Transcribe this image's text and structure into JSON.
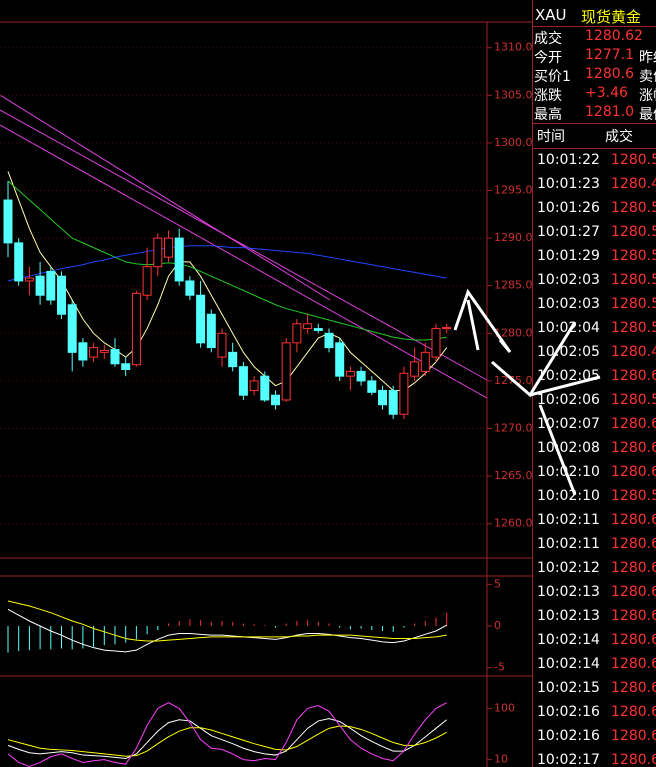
{
  "chart_data": [
    {
      "type": "candlestick",
      "ylim": [
        1256.4,
        1312.7
      ],
      "yticks": [
        {
          "value": 1310,
          "label": "1310.0"
        },
        {
          "value": 1305,
          "label": "1305.0"
        },
        {
          "value": 1300,
          "label": "1300.0"
        },
        {
          "value": 1295,
          "label": "1295.0"
        },
        {
          "value": 1290,
          "label": "1290.0"
        },
        {
          "value": 1285,
          "label": "1285.0"
        },
        {
          "value": 1280,
          "label": "1280.0"
        },
        {
          "value": 1275,
          "label": "1275.0"
        },
        {
          "value": 1270,
          "label": "1270.0"
        },
        {
          "value": 1265,
          "label": "1265.0"
        },
        {
          "value": 1260,
          "label": "1260.0"
        }
      ],
      "open": [
        1294,
        1289.5,
        1285.5,
        1286,
        1286.5,
        1286,
        1283,
        1279,
        1277.5,
        1278,
        1278.3,
        1276.8,
        1276.7,
        1284,
        1287,
        1288,
        1290,
        1285.5,
        1284,
        1282,
        1277.5,
        1278,
        1276.5,
        1274,
        1275.5,
        1273.5,
        1273,
        1279,
        1280.5,
        1280.5,
        1280,
        1279,
        1275.5,
        1276,
        1275,
        1274,
        1274,
        1271.5,
        1275.5,
        1276,
        1277.5,
        1280.5
      ],
      "high": [
        1296,
        1290,
        1287,
        1287.5,
        1287,
        1286.5,
        1283.5,
        1279.5,
        1279,
        1278.8,
        1279.5,
        1277.5,
        1284.5,
        1289,
        1290.5,
        1290.8,
        1291,
        1286,
        1285.5,
        1282.5,
        1280.5,
        1279,
        1277,
        1275.5,
        1276,
        1274,
        1279.5,
        1281.5,
        1282,
        1281,
        1280.5,
        1279.5,
        1276.5,
        1276.5,
        1275.5,
        1274.5,
        1274.5,
        1276.5,
        1278.5,
        1279,
        1281,
        1281
      ],
      "low": [
        1288,
        1285,
        1284,
        1283,
        1283,
        1281.5,
        1276,
        1276.5,
        1277,
        1277.3,
        1276.5,
        1275.5,
        1276.5,
        1283.5,
        1286,
        1287.5,
        1285,
        1283.5,
        1278.5,
        1278,
        1276.5,
        1276,
        1273,
        1273.5,
        1272.8,
        1272,
        1272.8,
        1278,
        1280,
        1280,
        1278,
        1275,
        1274,
        1274.5,
        1273.5,
        1272,
        1271,
        1271,
        1275,
        1275.5,
        1277,
        1280
      ],
      "close": [
        1289.5,
        1285.5,
        1285.8,
        1284,
        1283.5,
        1282,
        1278,
        1277.2,
        1278.5,
        1278.2,
        1276.8,
        1276.2,
        1284.2,
        1287,
        1290,
        1290,
        1285.5,
        1284,
        1279,
        1278.5,
        1280,
        1276.5,
        1273.5,
        1275,
        1273,
        1272.5,
        1279,
        1281,
        1281,
        1280.3,
        1278.5,
        1275.5,
        1276,
        1275,
        1273.8,
        1272.5,
        1271.5,
        1275.8,
        1277,
        1278,
        1280.5,
        1280.62
      ],
      "up_color": "#ff3232",
      "down_color": "#54ffff",
      "series": [
        {
          "color": "#ffffaa",
          "values": [
            1297,
            1294,
            1291,
            1288.5,
            1287,
            1285.5,
            1283.5,
            1281.5,
            1280,
            1279,
            1278.3,
            1277.5,
            1278.5,
            1280.5,
            1283,
            1286,
            1287.5,
            1287.5,
            1286,
            1284,
            1282,
            1280,
            1278,
            1276.5,
            1275.5,
            1274.5,
            1275,
            1276.5,
            1278,
            1279.5,
            1280,
            1279.5,
            1278,
            1277,
            1276,
            1275,
            1274,
            1274,
            1274.8,
            1275.8,
            1277,
            1278.5
          ]
        },
        {
          "color": "#22cc22",
          "values": [
            1296,
            1295,
            1294,
            1293,
            1292,
            1291,
            1290,
            1289.5,
            1289,
            1288.5,
            1288,
            1287.5,
            1287.3,
            1287.2,
            1287.3,
            1287.4,
            1287.3,
            1287,
            1286.5,
            1286,
            1285.5,
            1285,
            1284.5,
            1284,
            1283.5,
            1283,
            1282.6,
            1282.3,
            1282,
            1281.7,
            1281.4,
            1281.1,
            1280.8,
            1280.5,
            1280.2,
            1279.9,
            1279.6,
            1279.4,
            1279.3,
            1279.3,
            1279.4,
            1279.6
          ]
        },
        {
          "color": "#2244ff",
          "values": [
            1285.5,
            1285.8,
            1286,
            1286.3,
            1286.5,
            1286.8,
            1287,
            1287.2,
            1287.5,
            1287.7,
            1288,
            1288.2,
            1288.4,
            1288.6,
            1288.8,
            1289,
            1289.1,
            1289.2,
            1289.2,
            1289.2,
            1289.1,
            1289,
            1289,
            1288.9,
            1288.8,
            1288.7,
            1288.6,
            1288.5,
            1288.4,
            1288.2,
            1288,
            1287.8,
            1287.6,
            1287.4,
            1287.2,
            1287,
            1286.8,
            1286.6,
            1286.4,
            1286.2,
            1286,
            1285.8
          ]
        }
      ]
    },
    {
      "type": "macd",
      "ylim": [
        -6,
        6
      ],
      "yticks": [
        5,
        0,
        -5
      ],
      "values": [
        -3.2,
        -3.0,
        -2.9,
        -2.8,
        -2.8,
        -2.7,
        -2.8,
        -2.7,
        -2.5,
        -2.3,
        -2.2,
        -2,
        -1.6,
        -1,
        -0.5,
        0.3,
        0.6,
        0.8,
        0.7,
        0.5,
        0.6,
        0.5,
        0.3,
        0.2,
        0.1,
        -0.2,
        0.3,
        0.6,
        0.7,
        0.5,
        0.3,
        -0.2,
        -0.4,
        -0.3,
        -0.5,
        -0.6,
        -0.7,
        -0.2,
        0.3,
        0.6,
        1,
        1.6
      ],
      "up_color": "#ff3232",
      "down_color": "#54ffff",
      "series": [
        {
          "color": "#ffffff",
          "values": [
            2,
            1.3,
            0.6,
            0,
            -0.6,
            -1.1,
            -1.7,
            -2.2,
            -2.6,
            -2.9,
            -3,
            -3.1,
            -2.9,
            -2.2,
            -1.6,
            -1.1,
            -0.9,
            -0.9,
            -1,
            -1.1,
            -1.1,
            -1.2,
            -1.3,
            -1.4,
            -1.5,
            -1.6,
            -1.4,
            -1.1,
            -0.9,
            -0.9,
            -1,
            -1.2,
            -1.4,
            -1.5,
            -1.7,
            -1.9,
            -2,
            -1.8,
            -1.4,
            -1,
            -0.6,
            0.1
          ]
        },
        {
          "color": "#ffff00",
          "values": [
            3,
            2.7,
            2.4,
            2,
            1.6,
            1.1,
            0.6,
            0.2,
            -0.3,
            -0.7,
            -1.1,
            -1.5,
            -1.7,
            -1.8,
            -1.8,
            -1.7,
            -1.6,
            -1.5,
            -1.4,
            -1.3,
            -1.3,
            -1.3,
            -1.3,
            -1.3,
            -1.3,
            -1.3,
            -1.3,
            -1.2,
            -1.2,
            -1.1,
            -1.1,
            -1.1,
            -1.1,
            -1.2,
            -1.3,
            -1.4,
            -1.5,
            -1.5,
            -1.5,
            -1.4,
            -1.3,
            -1.1
          ]
        }
      ]
    },
    {
      "type": "kdj",
      "ylim": [
        -3,
        157
      ],
      "yticks": [
        100,
        10
      ],
      "series": [
        {
          "color": "#ffffff",
          "values": [
            35,
            28,
            22,
            20,
            22,
            24,
            22,
            18,
            17,
            16,
            14,
            12,
            20,
            40,
            60,
            75,
            80,
            78,
            65,
            52,
            45,
            38,
            30,
            24,
            20,
            18,
            25,
            45,
            65,
            78,
            82,
            77,
            65,
            52,
            42,
            33,
            25,
            25,
            35,
            50,
            65,
            80
          ]
        },
        {
          "color": "#ffff00",
          "values": [
            45,
            40,
            35,
            30,
            28,
            27,
            26,
            24,
            22,
            20,
            18,
            16,
            17,
            25,
            38,
            50,
            60,
            66,
            66,
            62,
            56,
            50,
            44,
            38,
            33,
            28,
            27,
            33,
            44,
            55,
            65,
            69,
            68,
            63,
            56,
            48,
            40,
            35,
            35,
            40,
            48,
            58
          ]
        },
        {
          "color": "#ff40ff",
          "values": [
            20,
            5,
            -2,
            5,
            15,
            20,
            12,
            5,
            8,
            10,
            5,
            2,
            30,
            70,
            100,
            110,
            100,
            75,
            45,
            30,
            28,
            20,
            10,
            8,
            12,
            10,
            40,
            80,
            100,
            105,
            95,
            70,
            45,
            30,
            20,
            12,
            8,
            25,
            55,
            80,
            100,
            110
          ]
        }
      ]
    }
  ],
  "quote": {
    "symbol": "XAU",
    "name": "现货黄金",
    "rows": [
      [
        "成交",
        "1280.62",
        ""
      ],
      [
        "今开",
        "1277.1",
        "昨结"
      ],
      [
        "买价1",
        "1280.6",
        "卖价"
      ],
      [
        "涨跌",
        "+3.46",
        "涨幅"
      ],
      [
        "最高",
        "1281.0",
        "最低"
      ]
    ]
  },
  "trades": {
    "header": [
      "时间",
      "成交"
    ],
    "rows": [
      [
        "10:01:22",
        "1280.5"
      ],
      [
        "10:01:23",
        "1280.4"
      ],
      [
        "10:01:26",
        "1280.5"
      ],
      [
        "10:01:27",
        "1280.5"
      ],
      [
        "10:01:29",
        "1280.5"
      ],
      [
        "10:02:03",
        "1280.5"
      ],
      [
        "10:02:03",
        "1280.5"
      ],
      [
        "10:02:04",
        "1280.5"
      ],
      [
        "10:02:05",
        "1280.4"
      ],
      [
        "10:02:05",
        "1280.6"
      ],
      [
        "10:02:06",
        "1280.5"
      ],
      [
        "10:02:07",
        "1280.6"
      ],
      [
        "10:02:08",
        "1280.6"
      ],
      [
        "10:02:10",
        "1280.6"
      ],
      [
        "10:02:10",
        "1280.5"
      ],
      [
        "10:02:11",
        "1280.6"
      ],
      [
        "10:02:11",
        "1280.6"
      ],
      [
        "10:02:12",
        "1280.6"
      ],
      [
        "10:02:13",
        "1280.6"
      ],
      [
        "10:02:13",
        "1280.6"
      ],
      [
        "10:02:14",
        "1280.6"
      ],
      [
        "10:02:14",
        "1280.6"
      ],
      [
        "10:02:15",
        "1280.6"
      ],
      [
        "10:02:16",
        "1280.6"
      ],
      [
        "10:02:16",
        "1280.6"
      ],
      [
        "10:02:17",
        "1280.6"
      ]
    ]
  }
}
